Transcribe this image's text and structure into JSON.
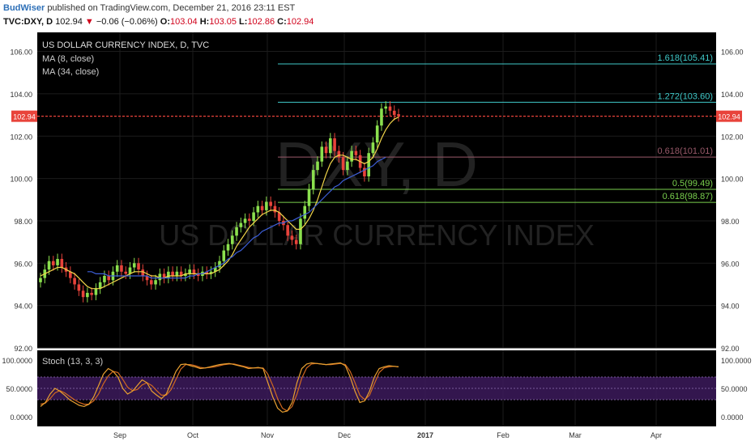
{
  "header": {
    "author": "BudWiser",
    "published": "published on TradingView.com, December 21, 2016 23:11 EST",
    "symbol": "TVC:DXY, D",
    "last": "102.94",
    "down_arrow": "▼",
    "change": "−0.06 (−0.06%)",
    "open_label": "O:",
    "open": "103.04",
    "high_label": "H:",
    "high": "103.05",
    "low_label": "L:",
    "low": "102.86",
    "close_label": "C:",
    "close": "102.94"
  },
  "legend": {
    "title": "US DOLLAR CURRENCY INDEX, D, TVC",
    "ma_fast": "MA (8, close)",
    "ma_slow": "MA (34, close)",
    "stoch": "Stoch (13, 3, 3)"
  },
  "watermark": {
    "line1": "DXY, D",
    "line2": "US DOLLAR CURRENCY INDEX"
  },
  "price_badge": "102.94",
  "colors": {
    "background": "#000000",
    "up": "#8be04e",
    "down": "#e8433b",
    "ma_fast": "#f2d64a",
    "ma_slow": "#3d5fd8",
    "price_line": "#e8433b",
    "stoch_k": "#e8a030",
    "stoch_d": "#d06820",
    "stoch_band": "#3c1a5c"
  },
  "chart_data": {
    "type": "candlestick",
    "y_ticks": [
      "106.00",
      "104.00",
      "102.00",
      "100.00",
      "98.00",
      "96.00",
      "94.00",
      "92.00"
    ],
    "ylim": [
      92,
      106.9
    ],
    "x_ticks": [
      "Sep",
      "Oct",
      "Nov",
      "Dec",
      "2017",
      "Feb",
      "Mar",
      "Apr"
    ],
    "stoch_ticks": [
      "100.0000",
      "50.0000",
      "0.0000"
    ],
    "stoch_band": [
      30,
      70
    ],
    "fib_levels": [
      {
        "label": "1.618(105.41)",
        "value": 105.41,
        "color": "#3fc9c9"
      },
      {
        "label": "1.272(103.60)",
        "value": 103.6,
        "color": "#3fc9c9"
      },
      {
        "label": "0.618(101.01)",
        "value": 101.01,
        "color": "#9a5a6a"
      },
      {
        "label": "0.5(99.49)",
        "value": 99.49,
        "color": "#7ad04e"
      },
      {
        "label": "0.618(98.87)",
        "value": 98.87,
        "color": "#7ad04e"
      }
    ],
    "close_price": 102.94,
    "candles_close": [
      95.3,
      95.7,
      96.1,
      95.9,
      96.2,
      95.8,
      95.6,
      95.3,
      95.0,
      94.7,
      94.4,
      94.6,
      94.5,
      94.8,
      95.1,
      95.4,
      95.2,
      95.6,
      95.9,
      95.6,
      95.5,
      95.8,
      96.0,
      95.7,
      95.4,
      95.2,
      95.0,
      95.2,
      95.5,
      95.3,
      95.6,
      95.4,
      95.6,
      95.4,
      95.5,
      95.7,
      95.5,
      95.4,
      95.6,
      95.5,
      95.6,
      95.8,
      96.1,
      96.6,
      96.9,
      97.3,
      97.7,
      97.9,
      98.1,
      98.0,
      98.4,
      98.7,
      98.5,
      98.9,
      98.7,
      98.4,
      98.0,
      97.8,
      97.3,
      97.1,
      96.9,
      98.1,
      98.7,
      99.5,
      100.4,
      100.8,
      101.5,
      101.2,
      101.9,
      101.3,
      101.0,
      100.4,
      100.8,
      101.3,
      101.1,
      100.5,
      100.1,
      101.2,
      101.7,
      102.5,
      103.3,
      103.4,
      103.2,
      103.0,
      102.94
    ],
    "candles_open": [
      95.1,
      95.3,
      95.7,
      96.1,
      95.9,
      96.2,
      95.8,
      95.6,
      95.3,
      95.0,
      94.7,
      94.4,
      94.6,
      94.5,
      94.8,
      95.1,
      95.4,
      95.2,
      95.6,
      95.9,
      95.6,
      95.5,
      95.8,
      96.0,
      95.7,
      95.4,
      95.2,
      95.0,
      95.2,
      95.5,
      95.3,
      95.6,
      95.4,
      95.6,
      95.4,
      95.5,
      95.7,
      95.5,
      95.4,
      95.6,
      95.5,
      95.6,
      95.8,
      96.1,
      96.6,
      96.9,
      97.3,
      97.7,
      97.9,
      98.1,
      98.0,
      98.4,
      98.7,
      98.5,
      98.9,
      98.7,
      98.4,
      98.0,
      97.8,
      97.3,
      97.1,
      96.9,
      98.1,
      98.7,
      99.5,
      100.4,
      100.8,
      101.5,
      101.2,
      101.9,
      101.3,
      101.0,
      100.4,
      100.8,
      101.3,
      101.1,
      100.5,
      100.1,
      101.2,
      101.7,
      102.5,
      103.3,
      103.4,
      103.2,
      103.04
    ],
    "ma_fast": [
      95.4,
      95.5,
      95.6,
      95.7,
      95.8,
      95.8,
      95.7,
      95.6,
      95.5,
      95.3,
      95.1,
      94.9,
      94.8,
      94.8,
      94.8,
      94.9,
      95.0,
      95.1,
      95.2,
      95.3,
      95.4,
      95.5,
      95.6,
      95.6,
      95.6,
      95.5,
      95.4,
      95.4,
      95.3,
      95.3,
      95.4,
      95.4,
      95.4,
      95.4,
      95.5,
      95.5,
      95.5,
      95.5,
      95.5,
      95.5,
      95.5,
      95.6,
      95.7,
      95.9,
      96.1,
      96.4,
      96.8,
      97.1,
      97.4,
      97.7,
      97.9,
      98.1,
      98.3,
      98.4,
      98.5,
      98.5,
      98.4,
      98.2,
      98.0,
      97.8,
      97.6,
      97.6,
      97.8,
      98.1,
      98.5,
      99.0,
      99.6,
      100.2,
      100.7,
      101.0,
      101.1,
      101.1,
      101.0,
      100.9,
      100.9,
      100.8,
      100.7,
      100.8,
      101.0,
      101.4,
      101.9,
      102.3,
      102.6,
      102.8,
      102.9
    ],
    "ma_slow": [
      null,
      null,
      null,
      null,
      null,
      null,
      null,
      null,
      null,
      null,
      null,
      95.6,
      95.6,
      95.5,
      95.5,
      95.5,
      95.4,
      95.4,
      95.4,
      95.4,
      95.4,
      95.4,
      95.4,
      95.4,
      95.4,
      95.4,
      95.3,
      95.3,
      95.3,
      95.3,
      95.3,
      95.3,
      95.3,
      95.3,
      95.3,
      95.4,
      95.4,
      95.5,
      95.5,
      95.6,
      95.7,
      95.8,
      95.9,
      96.0,
      96.2,
      96.3,
      96.5,
      96.6,
      96.8,
      97.0,
      97.2,
      97.3,
      97.5,
      97.6,
      97.7,
      97.8,
      97.9,
      97.9,
      98.0,
      98.0,
      98.1,
      98.2,
      98.3,
      98.4,
      98.6,
      98.8,
      99.0,
      99.2,
      99.4,
      99.6,
      99.7,
      99.9,
      100.0,
      100.1,
      100.2,
      100.3,
      100.4,
      100.5,
      100.6,
      100.8,
      100.9,
      101.0
    ],
    "stoch_k": [
      18,
      25,
      40,
      50,
      45,
      38,
      30,
      25,
      20,
      18,
      22,
      35,
      55,
      75,
      85,
      80,
      70,
      50,
      40,
      45,
      55,
      65,
      60,
      45,
      38,
      32,
      40,
      60,
      80,
      92,
      93,
      90,
      88,
      85,
      86,
      88,
      90,
      92,
      93,
      94,
      92,
      90,
      88,
      85,
      86,
      87,
      85,
      60,
      35,
      15,
      8,
      10,
      25,
      60,
      85,
      93,
      95,
      94,
      93,
      92,
      93,
      94,
      95,
      90,
      70,
      45,
      25,
      28,
      45,
      70,
      85,
      88,
      90,
      89,
      88
    ],
    "stoch_d": [
      22,
      24,
      32,
      42,
      46,
      42,
      36,
      30,
      25,
      22,
      22,
      28,
      40,
      58,
      72,
      80,
      78,
      66,
      52,
      46,
      48,
      56,
      60,
      55,
      46,
      38,
      38,
      48,
      66,
      84,
      92,
      92,
      90,
      87,
      86,
      87,
      88,
      90,
      92,
      93,
      93,
      91,
      89,
      87,
      86,
      86,
      86,
      75,
      55,
      32,
      15,
      10,
      18,
      40,
      68,
      86,
      93,
      94,
      93,
      92,
      92,
      93,
      94,
      92,
      80,
      60,
      38,
      30,
      38,
      58,
      78,
      86,
      88,
      89,
      88
    ]
  }
}
